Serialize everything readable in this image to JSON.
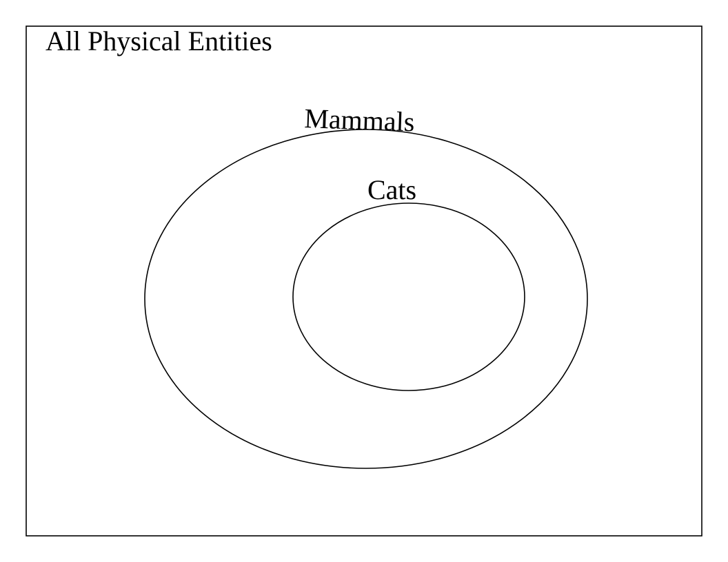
{
  "universe": {
    "label": "All Physical Entities"
  },
  "sets": {
    "mammals": {
      "label": "Mammals"
    },
    "cats": {
      "label": "Cats"
    }
  },
  "relation": {
    "cats_subset_of": "mammals",
    "mammals_subset_of": "universe"
  }
}
